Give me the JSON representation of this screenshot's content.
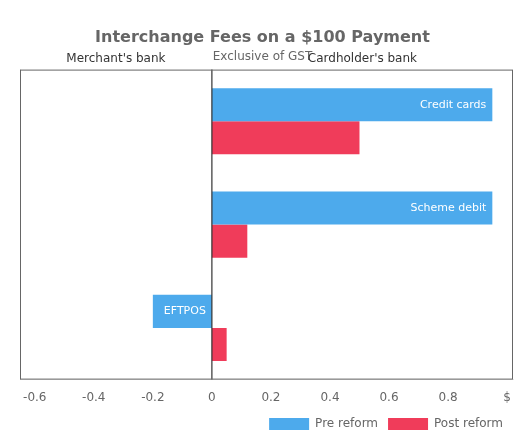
{
  "chart_data": {
    "type": "bar",
    "orientation": "horizontal",
    "title": "Interchange Fees on a $100 Payment",
    "subtitle": "Exclusive of GST",
    "categories": [
      "Credit cards",
      "Scheme debit",
      "EFTPOS"
    ],
    "series": [
      {
        "name": "Pre reform",
        "color": "#4DAAEC",
        "values": [
          0.95,
          0.95,
          -0.2
        ]
      },
      {
        "name": "Post reform",
        "color": "#F03C5A",
        "values": [
          0.5,
          0.12,
          0.05
        ]
      }
    ],
    "xlim": [
      -0.65,
      1.02
    ],
    "xticks": [
      -0.6,
      -0.4,
      -0.2,
      0,
      0.2,
      0.4,
      0.6,
      0.8,
      {
        "value": 1.0,
        "label": "$"
      }
    ],
    "annotations": [
      "Merchant's bank",
      "Cardholder's bank"
    ],
    "legend": "lower right",
    "grid": false,
    "tick_labels": "x"
  }
}
